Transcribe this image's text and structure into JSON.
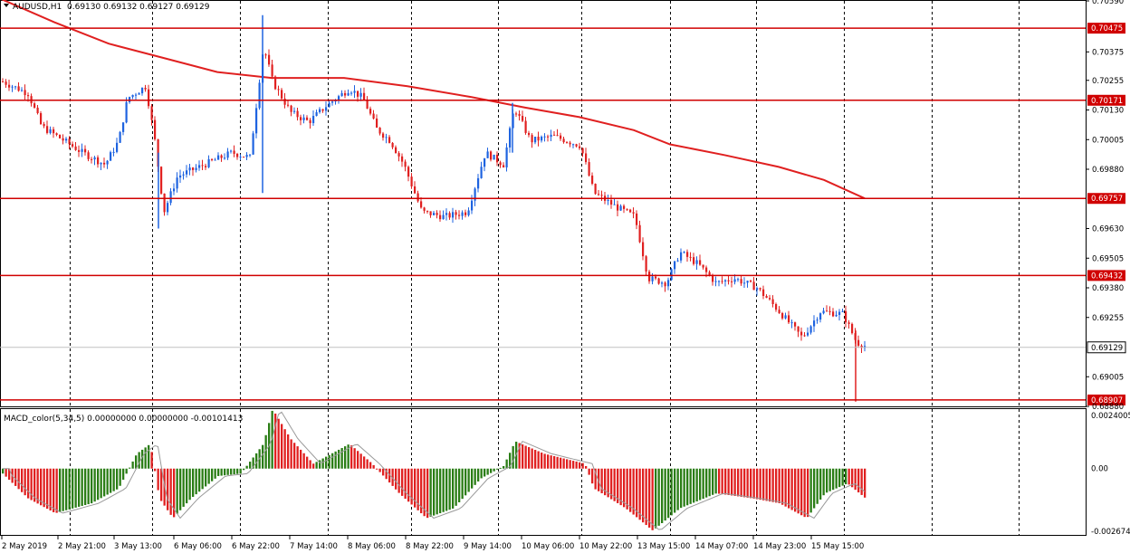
{
  "chart_data": [
    {
      "type": "candlestick",
      "symbol": "AUDUSD,H1",
      "ohlc_readout": [
        "0.69130",
        "0.69132",
        "0.69127",
        "0.69129"
      ],
      "ylim": [
        0.6888,
        0.7059
      ],
      "y_ticks": [
        "0.70590",
        "0.70375",
        "0.70255",
        "0.70130",
        "0.70005",
        "0.69880",
        "0.69630",
        "0.69505",
        "0.69380",
        "0.69255",
        "0.69005",
        "0.68880"
      ],
      "x_labels": [
        "2 May 2019",
        "2 May 21:00",
        "3 May 13:00",
        "6 May 06:00",
        "6 May 22:00",
        "7 May 14:00",
        "8 May 06:00",
        "8 May 22:00",
        "9 May 14:00",
        "10 May 06:00",
        "10 May 22:00",
        "13 May 15:00",
        "14 May 07:00",
        "14 May 23:00",
        "15 May 15:00"
      ],
      "grid": "vertical-dashed",
      "horizontal_levels": [
        "0.70475",
        "0.70171",
        "0.69757",
        "0.69432",
        "0.68907"
      ],
      "current_price": "0.69129",
      "moving_average_path": [
        [
          0,
          0.706
        ],
        [
          60,
          0.705
        ],
        [
          120,
          0.7041
        ],
        [
          180,
          0.7035
        ],
        [
          240,
          0.7029
        ],
        [
          300,
          0.70265
        ],
        [
          380,
          0.70265
        ],
        [
          450,
          0.7023
        ],
        [
          520,
          0.70185
        ],
        [
          580,
          0.7014
        ],
        [
          640,
          0.701
        ],
        [
          700,
          0.70045
        ],
        [
          740,
          0.69985
        ],
        [
          800,
          0.6994
        ],
        [
          860,
          0.6989
        ],
        [
          910,
          0.69835
        ],
        [
          955,
          0.69757
        ]
      ],
      "colors": {
        "bull": "#1e63e0",
        "bear": "#e02020",
        "line": "#e02020",
        "level": "#d00000",
        "grid": "#000000"
      }
    },
    {
      "type": "bar",
      "title": "MACD_color(5,34,5) 0.00000000 0.00000000 -0.00101413",
      "ylim": [
        -0.0026747,
        0.0024005
      ],
      "y_ticks": [
        "0.0024005",
        "0.00",
        "-0.0026747"
      ],
      "colors": {
        "up": "#2a7d15",
        "down": "#e02020",
        "signal": "#999999"
      }
    }
  ]
}
